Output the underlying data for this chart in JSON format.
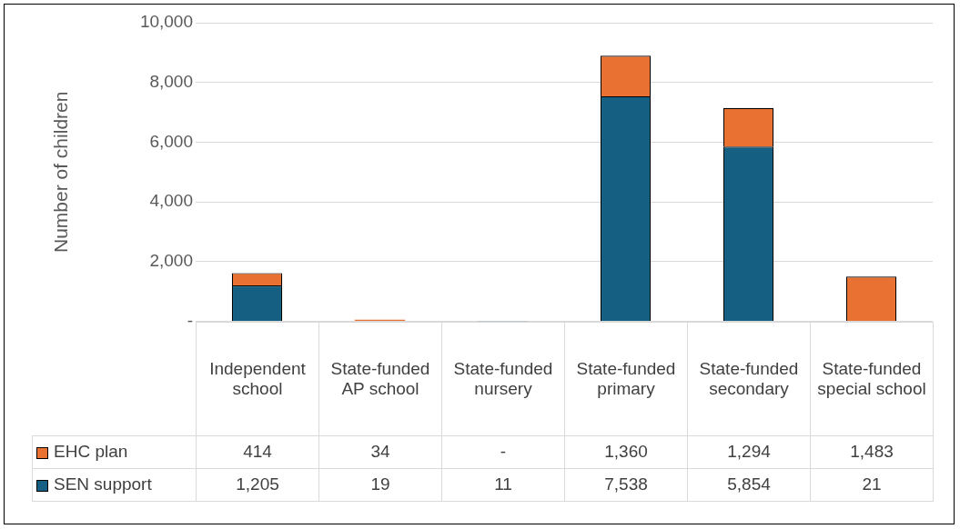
{
  "chart_data": {
    "type": "bar",
    "stacked": true,
    "ylabel": "Number of children",
    "categories": [
      "Independent school",
      "State-funded AP school",
      "State-funded nursery",
      "State-funded primary",
      "State-funded secondary",
      "State-funded special school"
    ],
    "series": [
      {
        "name": "SEN support",
        "color": "#156082",
        "values": [
          1205,
          19,
          11,
          7538,
          5854,
          21
        ],
        "value_labels": [
          "1,205",
          "19",
          "11",
          "7,538",
          "5,854",
          "21"
        ]
      },
      {
        "name": "EHC plan",
        "color": "#e97132",
        "values": [
          414,
          34,
          null,
          1360,
          1294,
          1483
        ],
        "value_labels": [
          "414",
          "34",
          "-",
          "1,360",
          "1,294",
          "1,483"
        ]
      }
    ],
    "ylim": [
      0,
      10000
    ],
    "yticks": [
      {
        "value": 0,
        "label": "-"
      },
      {
        "value": 2000,
        "label": "2,000"
      },
      {
        "value": 4000,
        "label": "4,000"
      },
      {
        "value": 6000,
        "label": "6,000"
      },
      {
        "value": 8000,
        "label": "8,000"
      },
      {
        "value": 10000,
        "label": "10,000"
      }
    ],
    "grid": "y",
    "legend": "bottom"
  }
}
